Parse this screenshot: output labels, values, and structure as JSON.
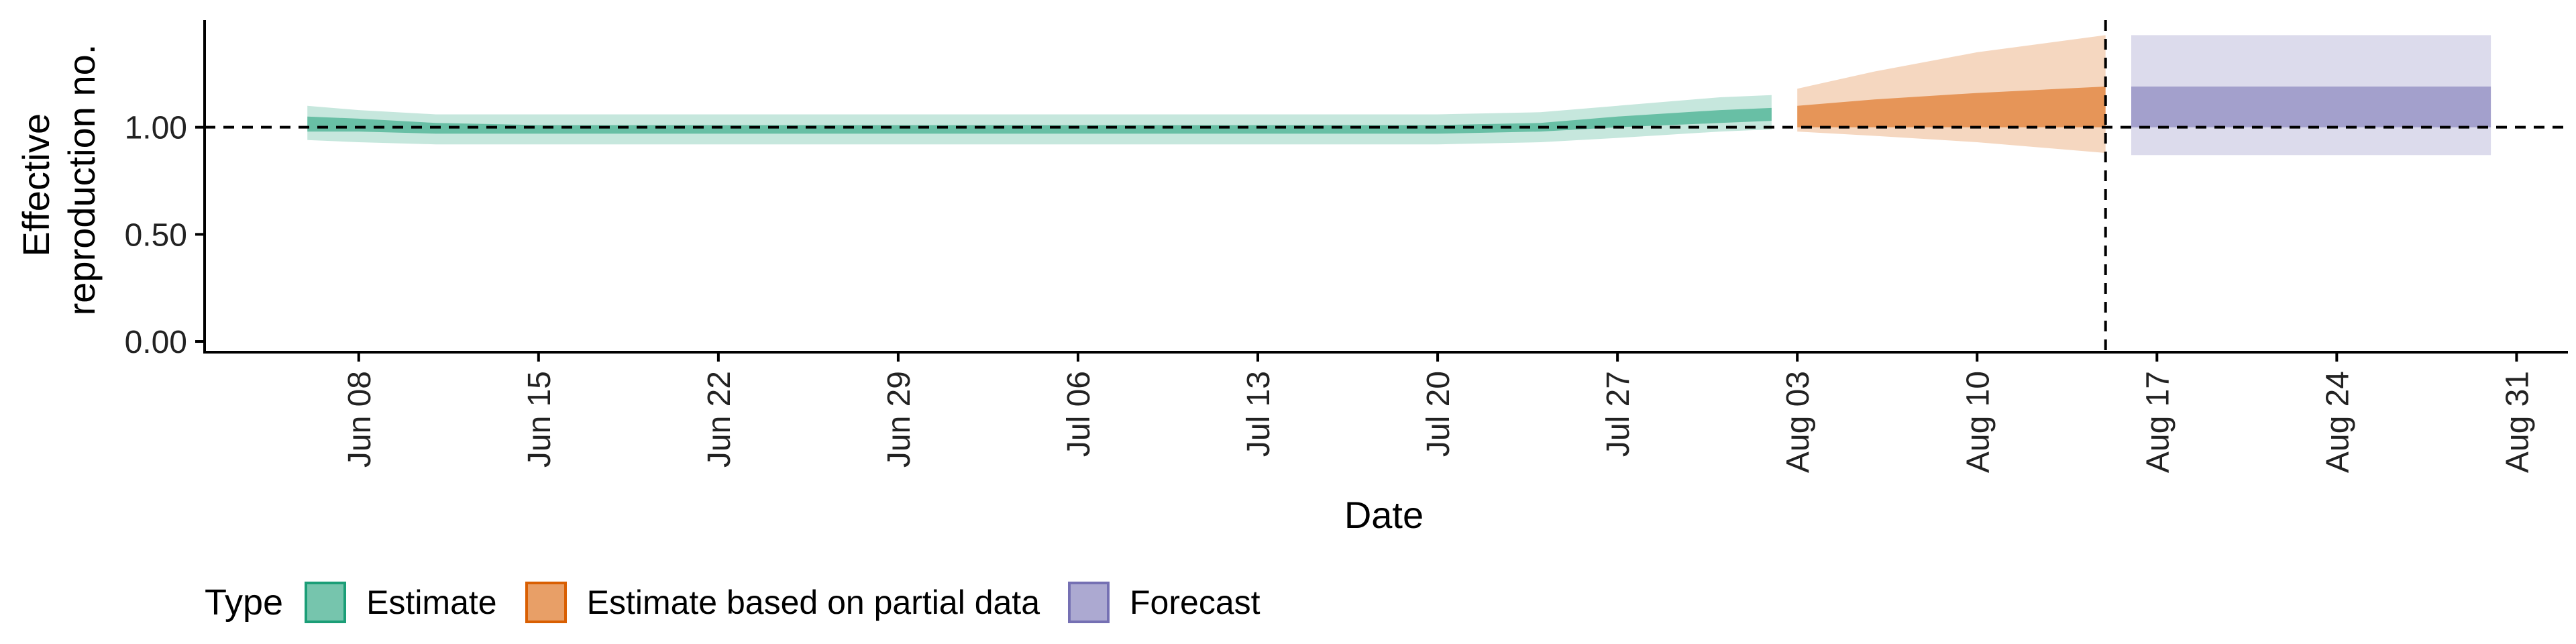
{
  "chart_data": {
    "type": "area",
    "title": "",
    "xlabel": "Date",
    "ylabel": "Effective reproduction no.",
    "ylabel_lines": [
      "Effective",
      "reproduction no."
    ],
    "x_ticks": [
      "Jun 08",
      "Jun 15",
      "Jun 22",
      "Jun 29",
      "Jul 06",
      "Jul 13",
      "Jul 20",
      "Jul 27",
      "Aug 03",
      "Aug 10",
      "Aug 17",
      "Aug 24",
      "Aug 31"
    ],
    "x_tick_dates": [
      "2020-06-08",
      "2020-06-15",
      "2020-06-22",
      "2020-06-29",
      "2020-07-06",
      "2020-07-13",
      "2020-07-20",
      "2020-07-27",
      "2020-08-03",
      "2020-08-10",
      "2020-08-17",
      "2020-08-24",
      "2020-08-31"
    ],
    "xlim": [
      "2020-06-02",
      "2020-09-02"
    ],
    "y_ticks": [
      "0.00",
      "0.50",
      "1.00"
    ],
    "y_tick_values": [
      0,
      0.5,
      1.0
    ],
    "ylim": [
      -0.05,
      1.5
    ],
    "reference_lines": {
      "y": 1.0,
      "x": "2020-08-15"
    },
    "grid": false,
    "legend": {
      "title": "Type",
      "position": "bottom-left"
    },
    "series": [
      {
        "name": "Estimate",
        "color": "#1b9e77",
        "points": [
          {
            "x": "2020-06-06",
            "outer": [
              0.94,
              1.1
            ],
            "inner": [
              0.98,
              1.05
            ]
          },
          {
            "x": "2020-06-08",
            "outer": [
              0.93,
              1.08
            ],
            "inner": [
              0.98,
              1.04
            ]
          },
          {
            "x": "2020-06-11",
            "outer": [
              0.92,
              1.06
            ],
            "inner": [
              0.97,
              1.02
            ]
          },
          {
            "x": "2020-06-15",
            "outer": [
              0.92,
              1.06
            ],
            "inner": [
              0.97,
              1.01
            ]
          },
          {
            "x": "2020-06-22",
            "outer": [
              0.92,
              1.06
            ],
            "inner": [
              0.97,
              1.01
            ]
          },
          {
            "x": "2020-06-29",
            "outer": [
              0.92,
              1.06
            ],
            "inner": [
              0.97,
              1.01
            ]
          },
          {
            "x": "2020-07-06",
            "outer": [
              0.92,
              1.06
            ],
            "inner": [
              0.97,
              1.01
            ]
          },
          {
            "x": "2020-07-13",
            "outer": [
              0.92,
              1.06
            ],
            "inner": [
              0.97,
              1.01
            ]
          },
          {
            "x": "2020-07-20",
            "outer": [
              0.92,
              1.06
            ],
            "inner": [
              0.97,
              1.01
            ]
          },
          {
            "x": "2020-07-24",
            "outer": [
              0.93,
              1.07
            ],
            "inner": [
              0.98,
              1.02
            ]
          },
          {
            "x": "2020-07-27",
            "outer": [
              0.95,
              1.1
            ],
            "inner": [
              1.0,
              1.05
            ]
          },
          {
            "x": "2020-07-31",
            "outer": [
              0.98,
              1.14
            ],
            "inner": [
              1.02,
              1.08
            ]
          },
          {
            "x": "2020-08-02",
            "outer": [
              0.99,
              1.15
            ],
            "inner": [
              1.03,
              1.09
            ]
          }
        ]
      },
      {
        "name": "Estimate based on partial data",
        "color": "#d95f02",
        "points": [
          {
            "x": "2020-08-03",
            "outer": [
              0.98,
              1.18
            ],
            "inner": [
              1.0,
              1.1
            ]
          },
          {
            "x": "2020-08-06",
            "outer": [
              0.96,
              1.26
            ],
            "inner": [
              1.0,
              1.13
            ]
          },
          {
            "x": "2020-08-10",
            "outer": [
              0.93,
              1.35
            ],
            "inner": [
              1.0,
              1.16
            ]
          },
          {
            "x": "2020-08-15",
            "outer": [
              0.88,
              1.43
            ],
            "inner": [
              1.0,
              1.19
            ]
          }
        ]
      },
      {
        "name": "Forecast",
        "color": "#7570b3",
        "points": [
          {
            "x": "2020-08-16",
            "outer": [
              0.87,
              1.43
            ],
            "inner": [
              1.0,
              1.19
            ]
          },
          {
            "x": "2020-08-30",
            "outer": [
              0.87,
              1.43
            ],
            "inner": [
              1.0,
              1.19
            ]
          }
        ]
      }
    ]
  }
}
